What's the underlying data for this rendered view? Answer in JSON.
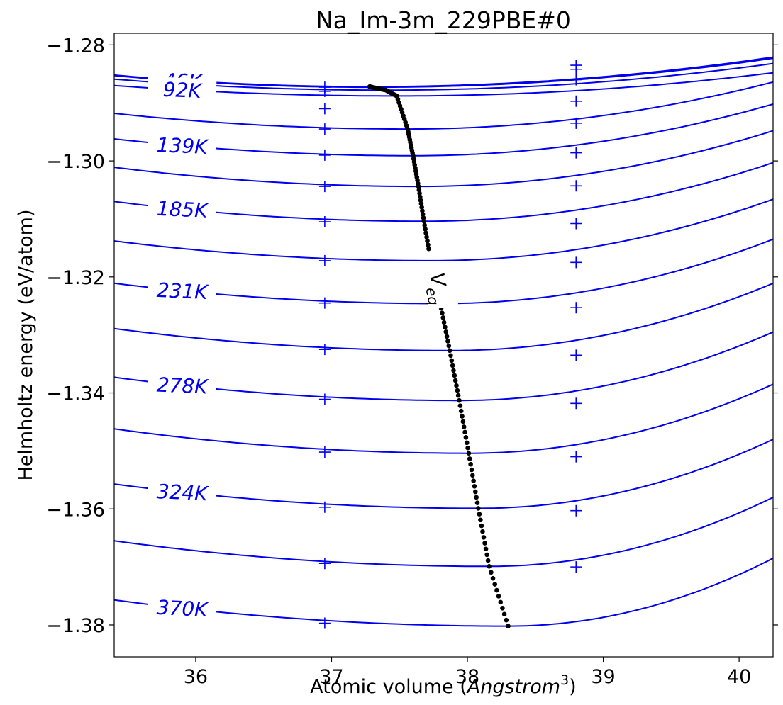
{
  "chart_data": {
    "type": "line",
    "title": "Na_Im-3m_229PBE#0",
    "xlabel": "Atomic volume (Angstrom³)",
    "ylabel": "Helmholtz energy (eV/atom)",
    "xlim": [
      35.4,
      40.25
    ],
    "ylim": [
      -1.3855,
      -1.278
    ],
    "x_ticks": [
      36,
      37,
      38,
      39,
      40
    ],
    "y_ticks": [
      -1.28,
      -1.3,
      -1.32,
      -1.34,
      -1.36,
      -1.38
    ],
    "x_tick_labels": [
      "36",
      "37",
      "38",
      "39",
      "40"
    ],
    "y_tick_labels": [
      "−1.28",
      "−1.30",
      "−1.32",
      "−1.34",
      "−1.36",
      "−1.38"
    ],
    "grid": false,
    "colors": {
      "isotherm": "#0000ee",
      "equilibrium": "#000000"
    },
    "isotherms": [
      {
        "label": "",
        "vmin": 37.28,
        "fmin": -1.2872,
        "fleft": -1.2852,
        "fright": -1.2821
      },
      {
        "label": "46K",
        "vmin": 37.3,
        "fmin": -1.2873,
        "fleft": -1.2853,
        "fright": -1.2823
      },
      {
        "label": "",
        "vmin": 37.4,
        "fmin": -1.2878,
        "fleft": -1.2859,
        "fright": -1.2832
      },
      {
        "label": "92K",
        "vmin": 37.48,
        "fmin": -1.2888,
        "fleft": -1.287,
        "fright": -1.2848
      },
      {
        "label": "",
        "vmin": 37.56,
        "fmin": -1.2945,
        "fleft": -1.2918,
        "fright": -1.2864
      },
      {
        "label": "139K",
        "vmin": 37.6,
        "fmin": -1.2991,
        "fleft": -1.2962,
        "fright": -1.2902
      },
      {
        "label": "",
        "vmin": 37.64,
        "fmin": -1.3044,
        "fleft": -1.3011,
        "fright": -1.2948
      },
      {
        "label": "185K",
        "vmin": 37.68,
        "fmin": -1.3104,
        "fleft": -1.307,
        "fright": -1.3003
      },
      {
        "label": "",
        "vmin": 37.73,
        "fmin": -1.3172,
        "fleft": -1.3138,
        "fright": -1.3066
      },
      {
        "label": "231K",
        "vmin": 37.8,
        "fmin": -1.3246,
        "fleft": -1.3211,
        "fright": -1.3135
      },
      {
        "label": "",
        "vmin": 37.87,
        "fmin": -1.3327,
        "fleft": -1.3289,
        "fright": -1.3211
      },
      {
        "label": "278K",
        "vmin": 37.94,
        "fmin": -1.3413,
        "fleft": -1.3373,
        "fright": -1.3295
      },
      {
        "label": "",
        "vmin": 38.01,
        "fmin": -1.3504,
        "fleft": -1.3462,
        "fright": -1.3385
      },
      {
        "label": "324K",
        "vmin": 38.08,
        "fmin": -1.3599,
        "fleft": -1.3557,
        "fright": -1.348
      },
      {
        "label": "",
        "vmin": 38.16,
        "fmin": -1.3699,
        "fleft": -1.3655,
        "fright": -1.358
      },
      {
        "label": "370K",
        "vmin": 38.3,
        "fmin": -1.3802,
        "fleft": -1.3757,
        "fright": -1.3685
      }
    ],
    "data_points_x": [
      36.95,
      38.8
    ],
    "data_points_y": [
      [
        -1.2873,
        -1.288,
        -1.291,
        -1.2945,
        -1.299,
        -1.3044,
        -1.3105,
        -1.3172,
        -1.3245,
        -1.3325,
        -1.3411,
        -1.3502,
        -1.3597,
        -1.3694,
        -1.3797
      ],
      [
        -1.2835,
        -1.2842,
        -1.286,
        -1.2897,
        -1.2935,
        -1.2986,
        -1.3043,
        -1.3108,
        -1.3175,
        -1.3253,
        -1.3335,
        -1.3418,
        -1.351,
        -1.3603,
        -1.37
      ]
    ],
    "equilibrium_label": "V",
    "equilibrium_label_sub": "eq"
  }
}
